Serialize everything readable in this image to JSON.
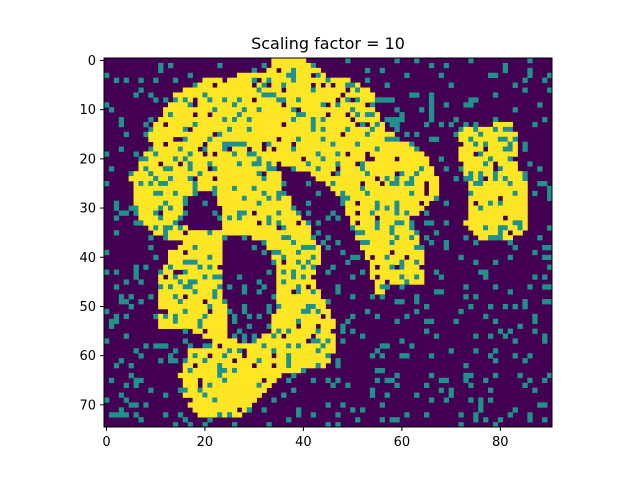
{
  "chart_data": {
    "type": "heatmap",
    "title": "Scaling factor = 10",
    "xlabel": "",
    "ylabel": "",
    "x_range": [
      -0.5,
      90.5
    ],
    "y_range": [
      74.5,
      -0.5
    ],
    "x_ticks": [
      0,
      20,
      40,
      60,
      80
    ],
    "y_ticks": [
      0,
      10,
      20,
      30,
      40,
      50,
      60,
      70
    ],
    "x_tick_labels": [
      "0",
      "20",
      "40",
      "60",
      "80"
    ],
    "y_tick_labels": [
      "0",
      "10",
      "20",
      "30",
      "40",
      "50",
      "60",
      "70"
    ],
    "grid": false,
    "legend": "none",
    "colormap": "viridis",
    "levels": [
      0,
      1,
      2
    ],
    "level_colors": [
      "#440154",
      "#21918c",
      "#fde725"
    ],
    "shape": [
      75,
      91
    ],
    "grid_values_description_note": "",
    "regions": [
      {
        "level": 2,
        "label": "",
        "polygon": [
          [
            9,
            14
          ],
          [
            14,
            7
          ],
          [
            20,
            4
          ],
          [
            27,
            3
          ],
          [
            32,
            3
          ],
          [
            34,
            0
          ],
          [
            41,
            0
          ],
          [
            45,
            3
          ],
          [
            50,
            4
          ],
          [
            54,
            6
          ],
          [
            55,
            10
          ],
          [
            57,
            14
          ],
          [
            60,
            16
          ],
          [
            63,
            17
          ],
          [
            66,
            21
          ],
          [
            68,
            26
          ],
          [
            66,
            29
          ],
          [
            62,
            32
          ],
          [
            64,
            37
          ],
          [
            65,
            45
          ],
          [
            58,
            46
          ],
          [
            55,
            48
          ],
          [
            54,
            44
          ],
          [
            53,
            40
          ],
          [
            50,
            34
          ],
          [
            48,
            29
          ],
          [
            46,
            26
          ],
          [
            43,
            24
          ],
          [
            40,
            22
          ],
          [
            36,
            23
          ],
          [
            38,
            30
          ],
          [
            42,
            35
          ],
          [
            44,
            40
          ],
          [
            42,
            44
          ],
          [
            44,
            48
          ],
          [
            46,
            52
          ],
          [
            47,
            58
          ],
          [
            45,
            62
          ],
          [
            41,
            63
          ],
          [
            36,
            64
          ],
          [
            34,
            66
          ],
          [
            30,
            70
          ],
          [
            27,
            73
          ],
          [
            20,
            73
          ],
          [
            16,
            69
          ],
          [
            15,
            64
          ],
          [
            17,
            59
          ],
          [
            22,
            57
          ],
          [
            18,
            55
          ],
          [
            10,
            55
          ],
          [
            11,
            50
          ],
          [
            11,
            44
          ],
          [
            13,
            39
          ],
          [
            16,
            37
          ],
          [
            10,
            35
          ],
          [
            6,
            31
          ],
          [
            5,
            24
          ],
          [
            8,
            19
          ]
        ]
      },
      {
        "level": 2,
        "label": "",
        "polygon": [
          [
            72,
            14
          ],
          [
            78,
            13
          ],
          [
            82,
            12
          ],
          [
            84,
            16
          ],
          [
            83,
            20
          ],
          [
            85,
            24
          ],
          [
            86,
            30
          ],
          [
            85,
            35
          ],
          [
            80,
            37
          ],
          [
            76,
            37
          ],
          [
            73,
            33
          ],
          [
            74,
            29
          ],
          [
            73,
            24
          ],
          [
            72,
            20
          ]
        ]
      },
      {
        "level": 0,
        "label": "",
        "polygon": [
          [
            24,
            36
          ],
          [
            30,
            36
          ],
          [
            33,
            38
          ],
          [
            35,
            44
          ],
          [
            34,
            52
          ],
          [
            32,
            56
          ],
          [
            28,
            58
          ],
          [
            25,
            56
          ],
          [
            24,
            48
          ],
          [
            23,
            42
          ]
        ]
      },
      {
        "level": 0,
        "label": "",
        "polygon": [
          [
            35,
            22
          ],
          [
            39,
            22
          ],
          [
            44,
            27
          ],
          [
            48,
            33
          ],
          [
            51,
            38
          ],
          [
            50,
            42
          ],
          [
            46,
            42
          ],
          [
            43,
            36
          ],
          [
            40,
            30
          ],
          [
            36,
            27
          ]
        ]
      },
      {
        "level": 0,
        "label": "",
        "polygon": [
          [
            16,
            28
          ],
          [
            21,
            26
          ],
          [
            24,
            31
          ],
          [
            23,
            35
          ],
          [
            18,
            35
          ],
          [
            15,
            32
          ]
        ]
      }
    ],
    "noise_level": 1,
    "noise_density": 0.11,
    "speckle_density": 0.18
  }
}
